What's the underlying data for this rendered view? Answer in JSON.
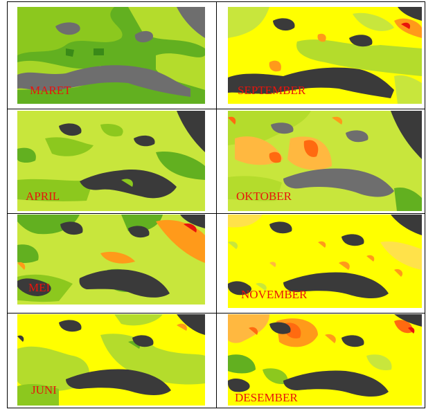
{
  "figure": {
    "panels": [
      {
        "label": "MARET",
        "palette": "green"
      },
      {
        "label": "SEPTEMBER",
        "palette": "yellow-orange"
      },
      {
        "label": "APRIL",
        "palette": "lime"
      },
      {
        "label": "OKTOBER",
        "palette": "orange"
      },
      {
        "label": "MEI",
        "palette": "lime-orange"
      },
      {
        "label": "NOVEMBER",
        "palette": "yellow"
      },
      {
        "label": "JUNI",
        "palette": "yellow-green"
      },
      {
        "label": "DESEMBER",
        "palette": "yellow-red"
      }
    ]
  },
  "colors": {
    "land": "#3a3a3a",
    "land_light": "#6e6e6e",
    "green": "#62b020",
    "lime": "#b4dc2c",
    "lime_light": "#c8e63c",
    "yellow": "#ffff00",
    "orange": "#ff9a1a",
    "orange_red": "#ff6a10",
    "red": "#e8140c",
    "label": "#e8140c"
  }
}
